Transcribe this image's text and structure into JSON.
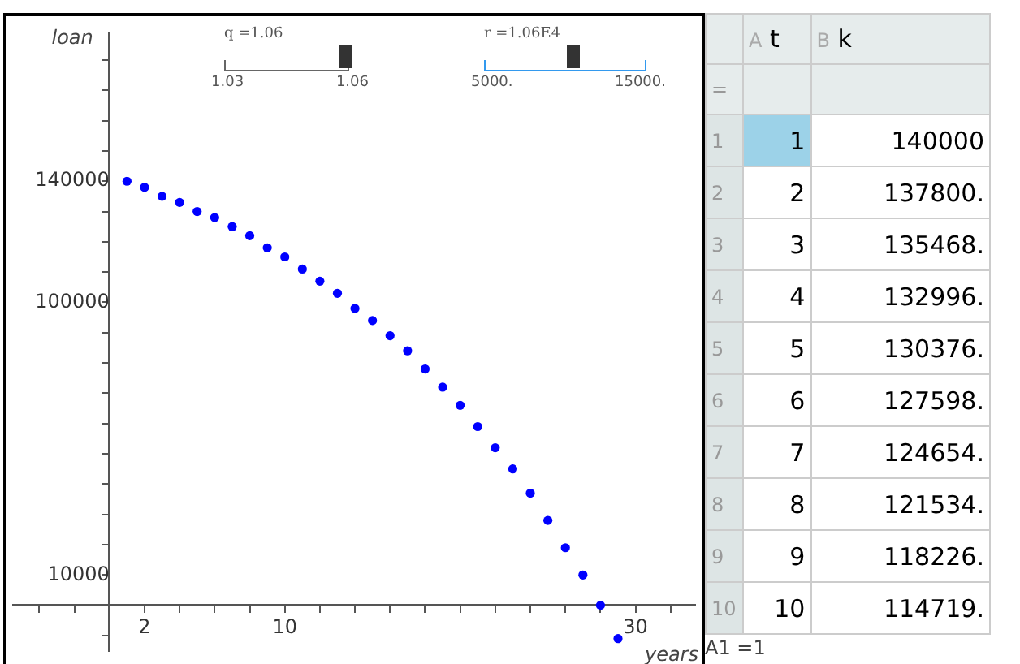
{
  "chart_data": {
    "type": "scatter",
    "xlabel": "years",
    "ylabel": "loan",
    "x": [
      1,
      2,
      3,
      4,
      5,
      6,
      7,
      8,
      9,
      10,
      11,
      12,
      13,
      14,
      15,
      16,
      17,
      18,
      19,
      20,
      21,
      22,
      23,
      24,
      25,
      26,
      27,
      28,
      29
    ],
    "values": [
      140000,
      138000,
      135000,
      133000,
      130000,
      128000,
      125000,
      122000,
      118000,
      115000,
      111000,
      107000,
      103000,
      98000,
      94000,
      89000,
      84000,
      78000,
      72000,
      66000,
      59000,
      52000,
      45000,
      37000,
      28000,
      19000,
      10000,
      0,
      -11000
    ],
    "color": "#0000ff",
    "marker": "circle",
    "grid": false,
    "legend": false,
    "xlim": [
      -5.5,
      33.4
    ],
    "ylim": [
      -15000,
      189000
    ],
    "xticks": [
      {
        "value": -4,
        "label": null
      },
      {
        "value": -2,
        "label": null
      },
      2,
      {
        "value": 4,
        "label": null
      },
      {
        "value": 6,
        "label": null
      },
      {
        "value": 8,
        "label": null
      },
      10,
      {
        "value": 12,
        "label": null
      },
      {
        "value": 14,
        "label": null
      },
      {
        "value": 16,
        "label": null
      },
      {
        "value": 18,
        "label": null
      },
      {
        "value": 20,
        "label": null
      },
      {
        "value": 22,
        "label": null
      },
      {
        "value": 24,
        "label": null
      },
      {
        "value": 26,
        "label": null
      },
      {
        "value": 28,
        "label": null
      },
      30,
      {
        "value": 32,
        "label": null
      }
    ],
    "yticks": [
      {
        "value": -10000,
        "label": null
      },
      10000,
      {
        "value": 20000,
        "label": null
      },
      {
        "value": 30000,
        "label": null
      },
      {
        "value": 40000,
        "label": null
      },
      {
        "value": 50000,
        "label": null
      },
      {
        "value": 60000,
        "label": null
      },
      {
        "value": 70000,
        "label": null
      },
      {
        "value": 80000,
        "label": null
      },
      {
        "value": 90000,
        "label": null
      },
      100000,
      {
        "value": 110000,
        "label": null
      },
      {
        "value": 120000,
        "label": null
      },
      {
        "value": 130000,
        "label": null
      },
      140000,
      {
        "value": 150000,
        "label": null
      },
      {
        "value": 160000,
        "label": null
      },
      {
        "value": 170000,
        "label": null
      },
      {
        "value": 180000,
        "label": null
      }
    ],
    "annotations": [
      "q =1.06",
      "1.03",
      "1.06",
      "r =1.06E4",
      "5000.",
      "15000.",
      "A",
      "t",
      "B",
      "k",
      "=",
      "1",
      "1",
      "140000",
      "2",
      "2",
      "137800.",
      "3",
      "3",
      "135468.",
      "4",
      "4",
      "132996.",
      "5",
      "5",
      "130376.",
      "6",
      "6",
      "127598.",
      "7",
      "7",
      "124654.",
      "8",
      "8",
      "121534.",
      "9",
      "9",
      "118226.",
      "10",
      "10",
      "114719.",
      "A1",
      "=1"
    ]
  }
}
